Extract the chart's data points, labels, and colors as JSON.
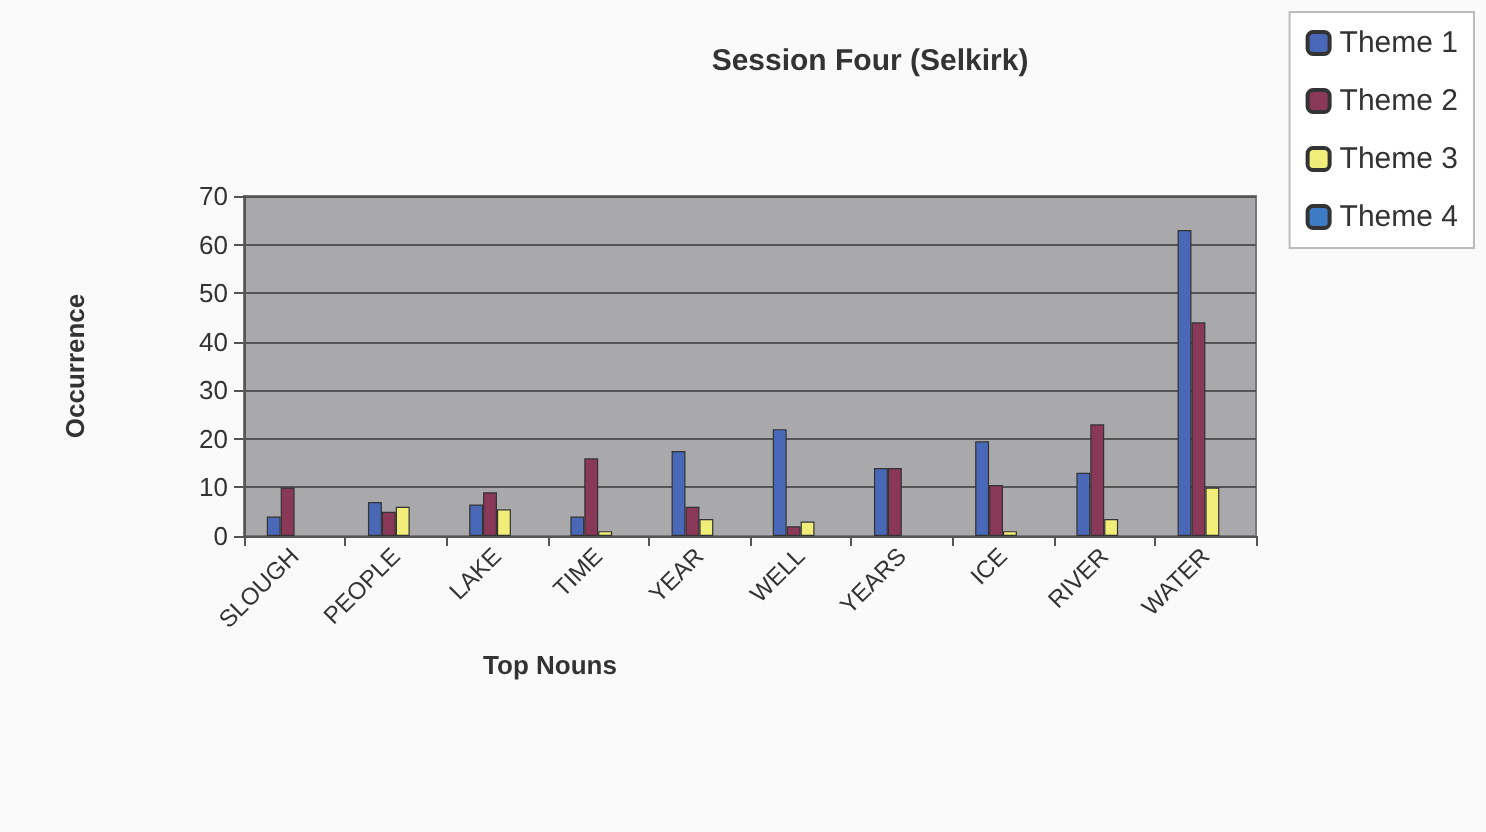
{
  "chart_data": {
    "type": "bar",
    "title": "Session Four (Selkirk)",
    "xlabel": "Top Nouns",
    "ylabel": "Occurrence",
    "categories": [
      "SLOUGH",
      "PEOPLE",
      "LAKE",
      "TIME",
      "YEAR",
      "WELL",
      "YEARS",
      "ICE",
      "RIVER",
      "WATER"
    ],
    "series": [
      {
        "name": "Theme 1",
        "color": "#4a68b8",
        "values": [
          4,
          7,
          6.5,
          4,
          17.5,
          22,
          14,
          19.5,
          13,
          63
        ]
      },
      {
        "name": "Theme 2",
        "color": "#8a3858",
        "values": [
          10,
          5,
          9,
          16,
          6,
          2,
          14,
          10.5,
          23,
          44
        ]
      },
      {
        "name": "Theme 3",
        "color": "#f0ee78",
        "values": [
          null,
          6,
          5.5,
          1,
          3.5,
          3,
          null,
          1,
          3.5,
          10
        ]
      },
      {
        "name": "Theme 4",
        "color": "#3d7cc4",
        "values": [
          null,
          null,
          null,
          null,
          null,
          null,
          null,
          null,
          null,
          null
        ]
      }
    ],
    "ylim": [
      0,
      70
    ],
    "yticks": [
      0,
      10,
      20,
      30,
      40,
      50,
      60,
      70
    ],
    "grid": "y",
    "legend": "right"
  }
}
